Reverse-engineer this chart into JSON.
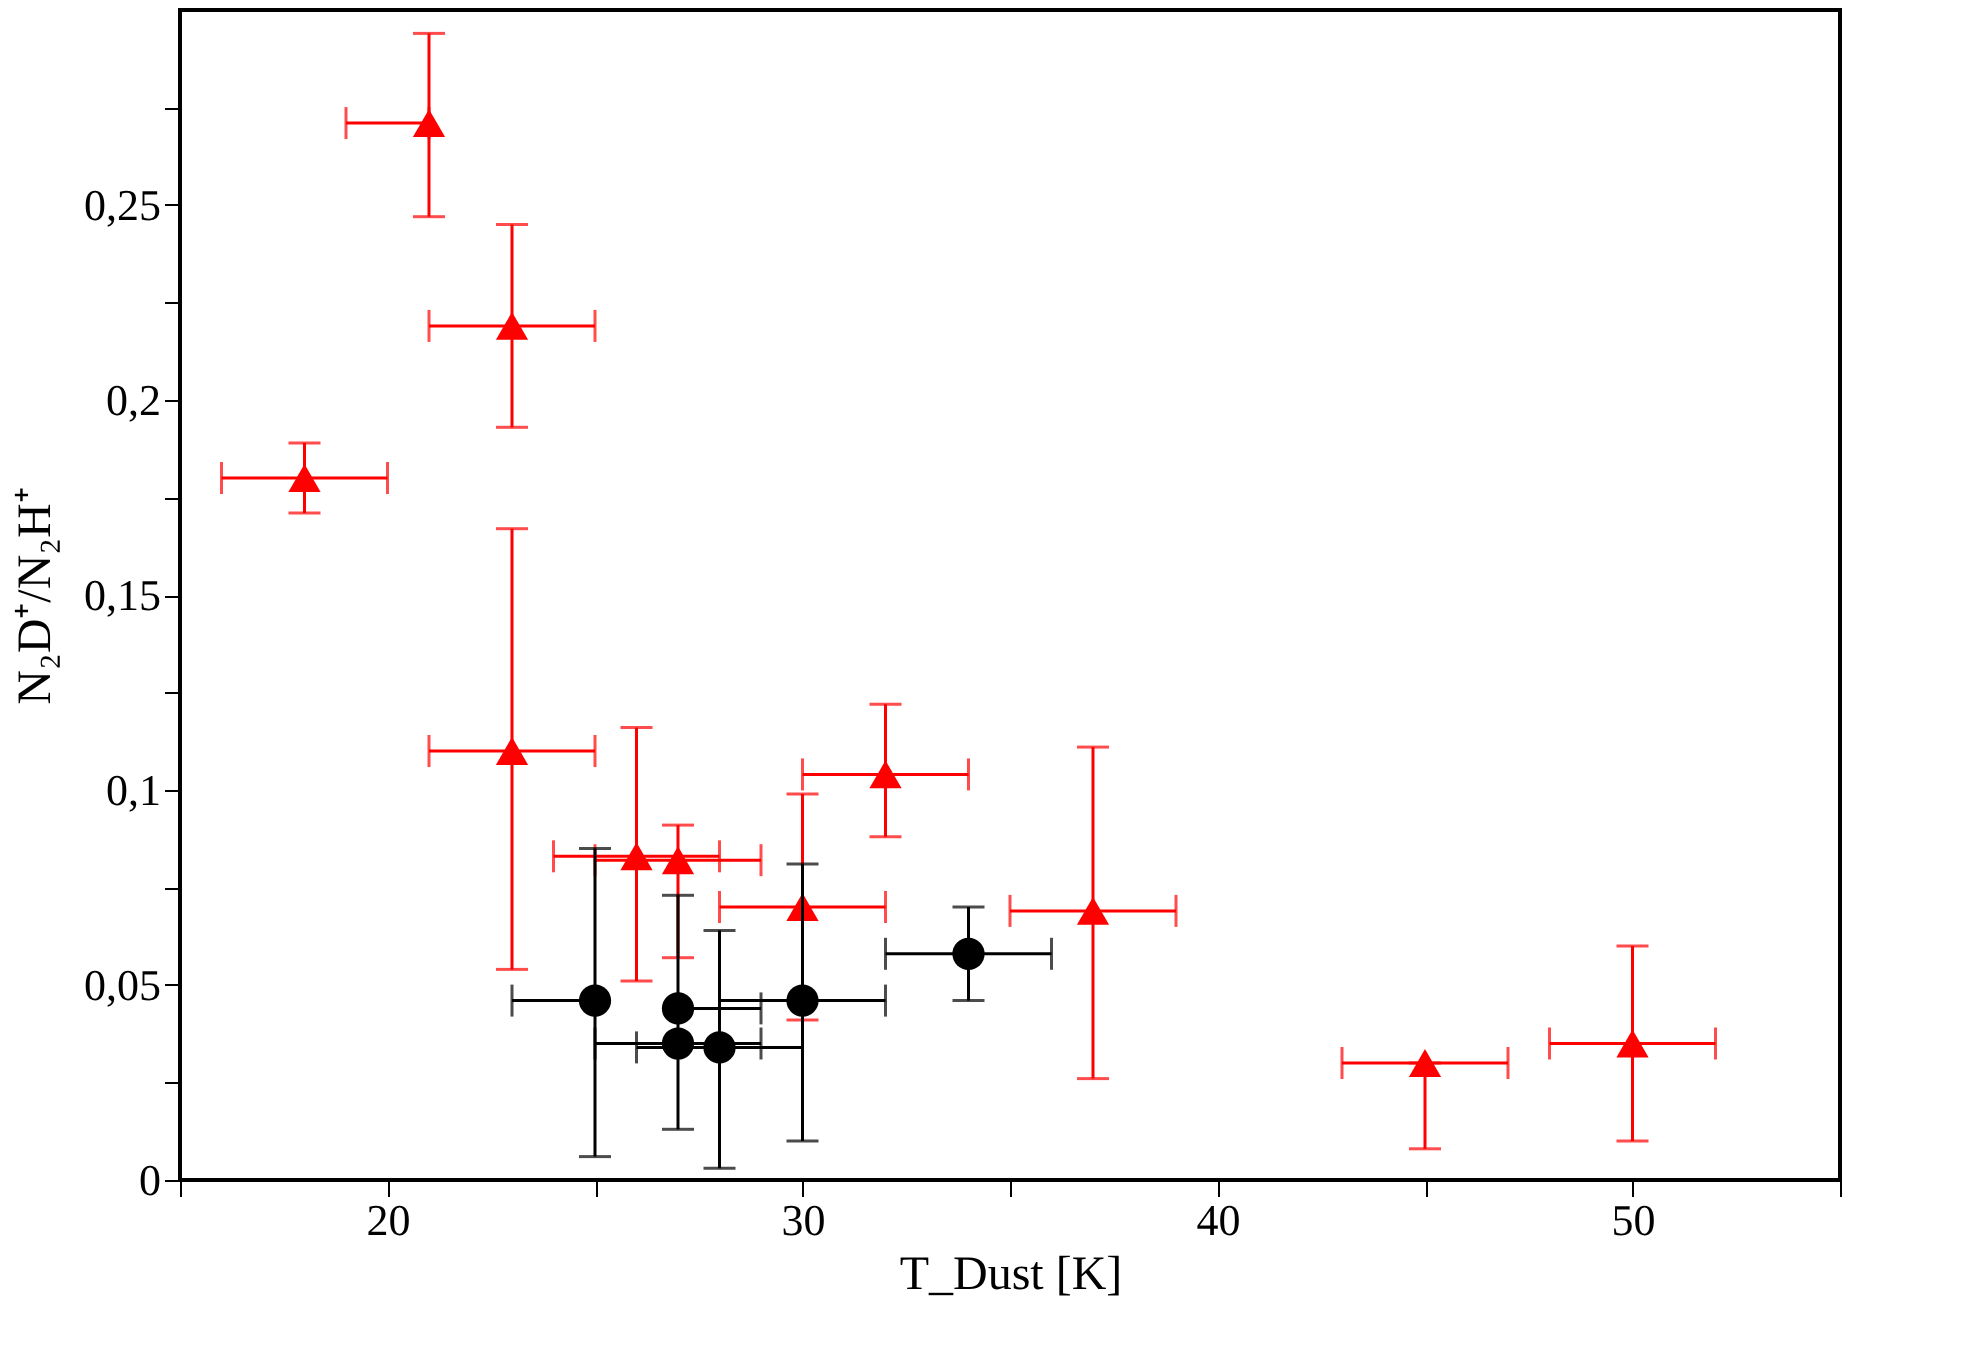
{
  "chart_data": {
    "type": "scatter",
    "xlabel": "T_Dust [K]",
    "ylabel": "N₂D⁺/N₂H⁺",
    "xlim": [
      15,
      55
    ],
    "ylim": [
      0,
      0.3
    ],
    "xticks": [
      {
        "value": 15,
        "label": null
      },
      20,
      {
        "value": 25,
        "label": null
      },
      30,
      {
        "value": 35,
        "label": null
      },
      40,
      {
        "value": 45,
        "label": null
      },
      50,
      {
        "value": 55,
        "label": null
      }
    ],
    "yticks": [
      0,
      {
        "value": 0.025,
        "label": null
      },
      {
        "value": 0.05,
        "label": "0,05"
      },
      {
        "value": 0.075,
        "label": null
      },
      {
        "value": 0.1,
        "label": "0,1"
      },
      {
        "value": 0.125,
        "label": null
      },
      {
        "value": 0.15,
        "label": "0,15"
      },
      {
        "value": 0.175,
        "label": null
      },
      {
        "value": 0.2,
        "label": "0,2"
      },
      {
        "value": 0.225,
        "label": null
      },
      {
        "value": 0.25,
        "label": "0,25"
      },
      {
        "value": 0.275,
        "label": null
      }
    ],
    "grid": false,
    "series": [
      {
        "color": "#ff0000",
        "marker": "triangle",
        "x": [
          21,
          23,
          18,
          23,
          26,
          27,
          30,
          32,
          37,
          45,
          50
        ],
        "values": [
          0.271,
          0.219,
          0.18,
          0.11,
          0.083,
          0.082,
          0.07,
          0.104,
          0.069,
          0.03,
          0.035
        ],
        "errors": [
          [
            0.247,
            0.294
          ],
          [
            0.193,
            0.245
          ],
          [
            0.171,
            0.189
          ],
          [
            0.054,
            0.167
          ],
          [
            0.051,
            0.116
          ],
          [
            0.057,
            0.091
          ],
          [
            0.041,
            0.099
          ],
          [
            0.088,
            0.122
          ],
          [
            0.026,
            0.111
          ],
          [
            0.008,
            0.03
          ],
          [
            0.01,
            0.06
          ]
        ],
        "xerrors": [
          [
            19,
            21
          ],
          [
            21,
            25
          ],
          [
            16,
            20
          ],
          [
            21,
            25
          ],
          [
            24,
            28
          ],
          [
            25,
            29
          ],
          [
            28,
            32
          ],
          [
            30,
            34
          ],
          [
            35,
            39
          ],
          [
            43,
            47
          ],
          [
            48,
            52
          ]
        ]
      },
      {
        "color": "#000000",
        "marker": "circle",
        "x": [
          25,
          27,
          27,
          28,
          30,
          34
        ],
        "values": [
          0.046,
          0.044,
          0.035,
          0.034,
          0.046,
          0.058
        ],
        "errors": [
          [
            0.006,
            0.085
          ],
          [
            0.013,
            0.073
          ],
          null,
          [
            0.003,
            0.064
          ],
          [
            0.01,
            0.081
          ],
          [
            0.046,
            0.07
          ]
        ],
        "xerrors": [
          [
            23,
            25
          ],
          [
            27,
            29
          ],
          [
            25,
            29
          ],
          [
            26,
            30
          ],
          [
            28,
            32
          ],
          [
            32,
            36
          ]
        ]
      }
    ]
  }
}
